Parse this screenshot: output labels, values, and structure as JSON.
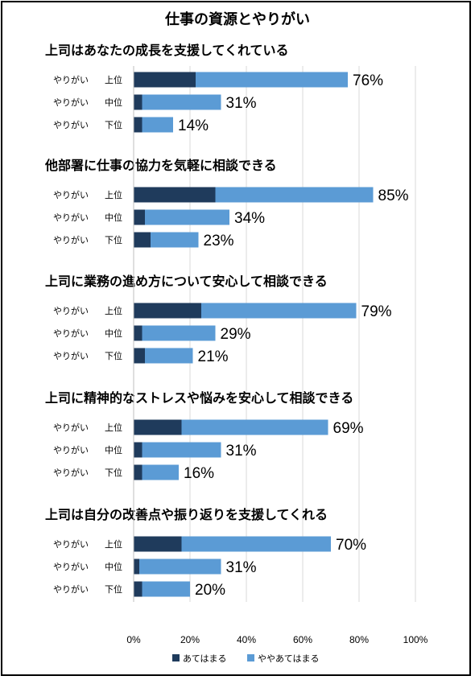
{
  "chart_data": {
    "type": "bar",
    "orientation": "horizontal",
    "stacked": true,
    "title": "仕事の資源とやりがい",
    "xlim": [
      0,
      100
    ],
    "x_ticks": [
      "0%",
      "20%",
      "40%",
      "60%",
      "80%",
      "100%"
    ],
    "grid": true,
    "legend_position": "bottom",
    "colors": {
      "dark": "#1f3b5c",
      "light": "#5b9bd5"
    },
    "legend": [
      {
        "name": "あてはまる",
        "color": "#1f3b5c"
      },
      {
        "name": "ややあてはまる",
        "color": "#5b9bd5"
      }
    ],
    "groups": [
      {
        "title": "上司はあなたの成長を支援してくれている",
        "bars": [
          {
            "tag": "やりがい",
            "level": "上位",
            "dark": 22,
            "light": 54,
            "total_label": "76%"
          },
          {
            "tag": "やりがい",
            "level": "中位",
            "dark": 3,
            "light": 28,
            "total_label": "31%"
          },
          {
            "tag": "やりがい",
            "level": "下位",
            "dark": 3,
            "light": 11,
            "total_label": "14%"
          }
        ]
      },
      {
        "title": "他部署に仕事の協力を気軽に相談できる",
        "bars": [
          {
            "tag": "やりがい",
            "level": "上位",
            "dark": 29,
            "light": 56,
            "total_label": "85%"
          },
          {
            "tag": "やりがい",
            "level": "中位",
            "dark": 4,
            "light": 30,
            "total_label": "34%"
          },
          {
            "tag": "やりがい",
            "level": "下位",
            "dark": 6,
            "light": 17,
            "total_label": "23%"
          }
        ]
      },
      {
        "title": "上司に業務の進め方について安心して相談できる",
        "bars": [
          {
            "tag": "やりがい",
            "level": "上位",
            "dark": 24,
            "light": 55,
            "total_label": "79%"
          },
          {
            "tag": "やりがい",
            "level": "中位",
            "dark": 3,
            "light": 26,
            "total_label": "29%"
          },
          {
            "tag": "やりがい",
            "level": "下位",
            "dark": 4,
            "light": 17,
            "total_label": "21%"
          }
        ]
      },
      {
        "title": "上司に精神的なストレスや悩みを安心して相談できる",
        "bars": [
          {
            "tag": "やりがい",
            "level": "上位",
            "dark": 17,
            "light": 52,
            "total_label": "69%"
          },
          {
            "tag": "やりがい",
            "level": "中位",
            "dark": 3,
            "light": 28,
            "total_label": "31%"
          },
          {
            "tag": "やりがい",
            "level": "下位",
            "dark": 3,
            "light": 13,
            "total_label": "16%"
          }
        ]
      },
      {
        "title": "上司は自分の改善点や振り返りを支援してくれる",
        "bars": [
          {
            "tag": "やりがい",
            "level": "上位",
            "dark": 17,
            "light": 53,
            "total_label": "70%"
          },
          {
            "tag": "やりがい",
            "level": "中位",
            "dark": 2,
            "light": 29,
            "total_label": "31%"
          },
          {
            "tag": "やりがい",
            "level": "下位",
            "dark": 3,
            "light": 17,
            "total_label": "20%"
          }
        ]
      }
    ]
  }
}
